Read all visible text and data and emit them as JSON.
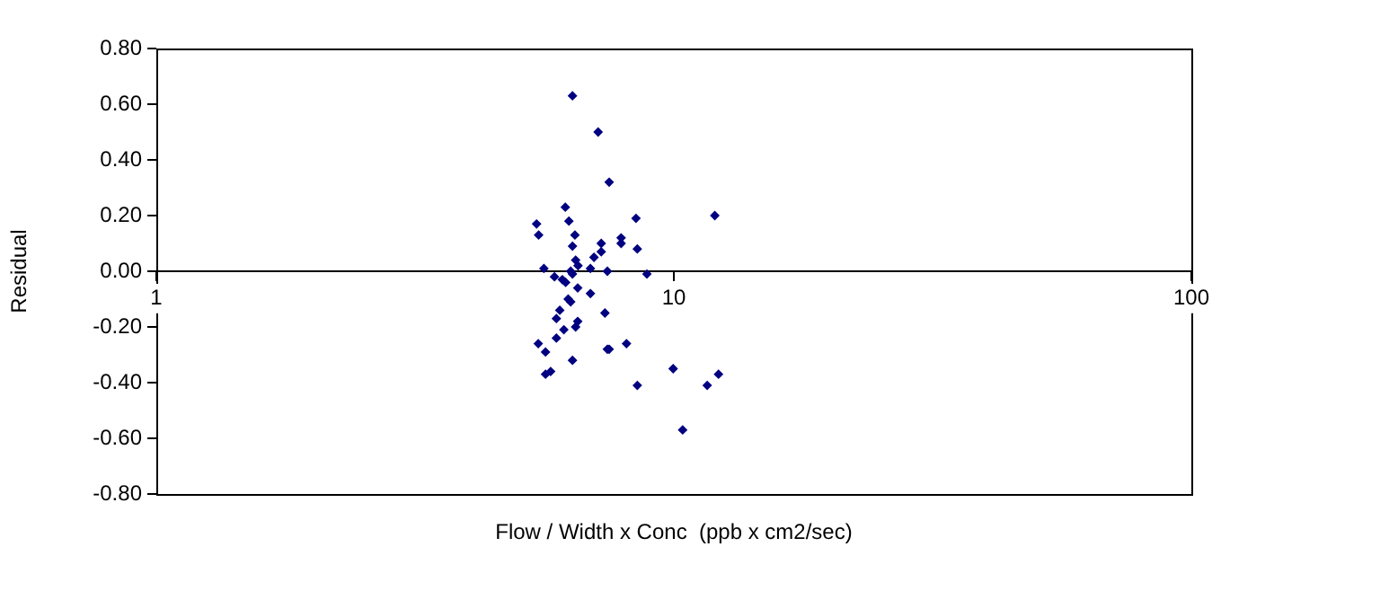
{
  "chart_data": {
    "type": "scatter",
    "xlabel": "Flow / Width x Conc  (ppb x cm2/sec)",
    "ylabel": "Residual",
    "log": "x",
    "xlim": [
      1,
      100
    ],
    "xticks": [
      1,
      10,
      100
    ],
    "ylim": [
      -0.8,
      0.8
    ],
    "yticks": [
      {
        "value": -0.8,
        "label": "-0.80"
      },
      {
        "value": -0.6,
        "label": "-0.60"
      },
      {
        "value": -0.4,
        "label": "-0.40"
      },
      {
        "value": -0.2,
        "label": "-0.20"
      },
      {
        "value": 0,
        "label": "0.00"
      },
      {
        "value": 0.2,
        "label": "0.20"
      },
      {
        "value": 0.4,
        "label": "0.40"
      },
      {
        "value": 0.6,
        "label": "0.60"
      },
      {
        "value": 0.8,
        "label": "0.80"
      }
    ],
    "grid": false,
    "legend": false,
    "marker": "diamond",
    "series": [
      {
        "color": "#000080",
        "x": [
          6.37,
          7.14,
          7.5,
          6.17,
          8.45,
          12.0,
          5.43,
          6.27,
          5.48,
          6.44,
          7.91,
          7.91,
          7.24,
          6.37,
          8.5,
          7.24,
          7.01,
          6.46,
          6.53,
          5.61,
          6.9,
          7.44,
          8.87,
          5.88,
          6.09,
          6.18,
          6.32,
          6.37,
          6.52,
          6.9,
          6.25,
          6.32,
          6.02,
          7.36,
          5.93,
          6.52,
          6.46,
          6.13,
          5.93,
          5.47,
          8.1,
          5.65,
          7.5,
          7.44,
          6.37,
          5.65,
          5.78,
          9.97,
          8.5,
          12.2,
          11.6,
          10.4
        ],
        "values": [
          0.63,
          0.5,
          0.32,
          0.23,
          0.19,
          0.2,
          0.17,
          0.18,
          0.13,
          0.13,
          0.12,
          0.1,
          0.1,
          0.09,
          0.08,
          0.07,
          0.05,
          0.04,
          0.02,
          0.01,
          0.01,
          0.0,
          -0.01,
          -0.02,
          -0.03,
          -0.04,
          0.0,
          -0.01,
          -0.06,
          -0.08,
          -0.1,
          -0.11,
          -0.14,
          -0.15,
          -0.17,
          -0.18,
          -0.2,
          -0.21,
          -0.24,
          -0.26,
          -0.26,
          -0.29,
          -0.28,
          -0.28,
          -0.32,
          -0.37,
          -0.36,
          -0.35,
          -0.41,
          -0.37,
          -0.41,
          -0.57
        ]
      }
    ]
  }
}
